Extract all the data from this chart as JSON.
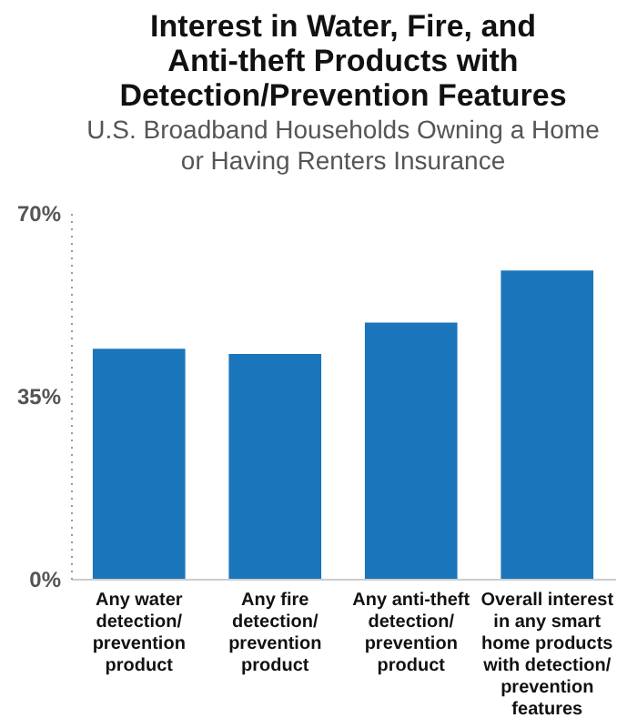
{
  "chart_data": {
    "type": "bar",
    "title": "Interest in Water, Fire, and\nAnti-theft Products with\nDetection/Prevention Features",
    "subtitle": "U.S. Broadband Households Owning a Home\nor Having Renters Insurance",
    "categories": [
      "Any water\ndetection/\nprevention\nproduct",
      "Any fire\ndetection/\nprevention\nproduct",
      "Any anti-theft\ndetection/\nprevention\nproduct",
      "Overall interest\nin any smart\nhome products\nwith detection/\nprevention\nfeatures"
    ],
    "values": [
      44,
      43,
      49,
      59
    ],
    "color": "#1a75bb",
    "ylim": [
      0,
      70
    ],
    "yticks": [
      {
        "value": 0,
        "label": "0%"
      },
      {
        "value": 35,
        "label": "35%"
      },
      {
        "value": 70,
        "label": "70%"
      }
    ],
    "grid": false
  }
}
